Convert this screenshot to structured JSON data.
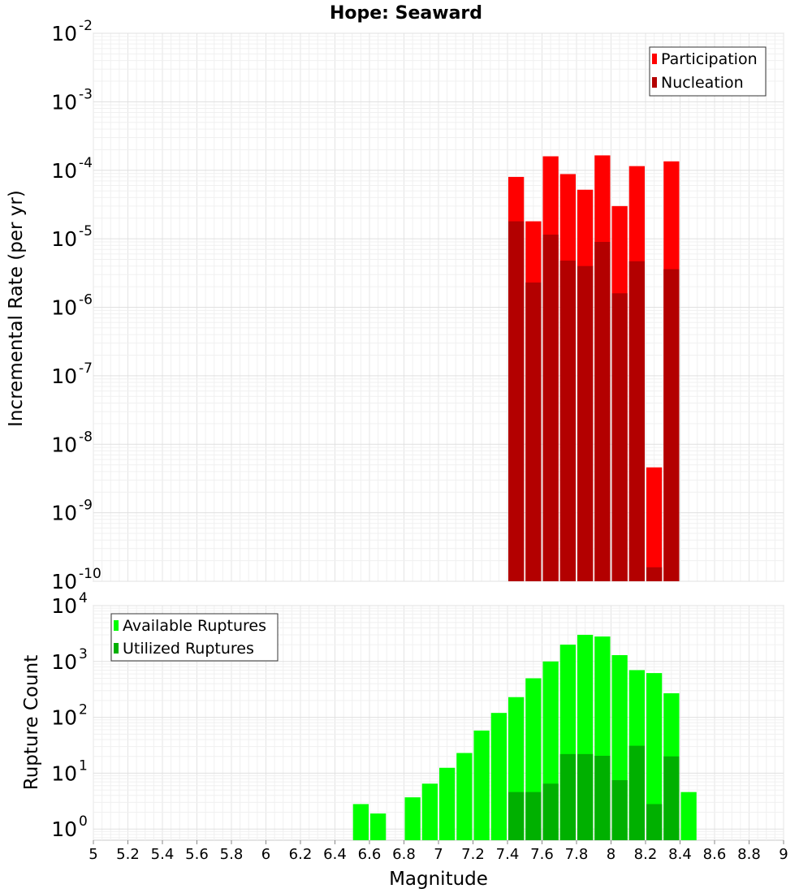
{
  "title": "Hope: Seaward",
  "chart_data": [
    {
      "type": "bar",
      "id": "rate",
      "yscale": "log",
      "ylabel": "Incremental Rate (per yr)",
      "xlim": [
        5,
        9
      ],
      "ylim_exp": [
        -10,
        -2
      ],
      "y_ticks": [
        "10",
        "10",
        "10",
        "10",
        "10",
        "10",
        "10",
        "10",
        "10"
      ],
      "y_tick_exps": [
        "-10",
        "-9",
        "-8",
        "-7",
        "-6",
        "-5",
        "-4",
        "-3",
        "-2"
      ],
      "bin_width": 0.1,
      "legend": {
        "position": "top-right",
        "entries": [
          "Participation",
          "Nucleation"
        ]
      },
      "series": [
        {
          "name": "Participation",
          "color": "#ff0000",
          "x": [
            7.45,
            7.55,
            7.65,
            7.75,
            7.85,
            7.95,
            8.05,
            8.15,
            8.25,
            8.35
          ],
          "values": [
            8e-05,
            1.8e-05,
            0.00016,
            8.8e-05,
            5.2e-05,
            0.000165,
            3e-05,
            0.000115,
            4.6e-09,
            0.000135
          ]
        },
        {
          "name": "Nucleation",
          "color": "#b30000",
          "x": [
            7.45,
            7.55,
            7.65,
            7.75,
            7.85,
            7.95,
            8.05,
            8.15,
            8.25,
            8.35
          ],
          "values": [
            1.8e-05,
            2.3e-06,
            1.15e-05,
            4.8e-06,
            4e-06,
            9e-06,
            1.6e-06,
            4.7e-06,
            1.6e-10,
            3.6e-06
          ]
        }
      ]
    },
    {
      "type": "bar",
      "id": "count",
      "yscale": "log",
      "xlabel": "Magnitude",
      "ylabel": "Rupture Count",
      "xlim": [
        5,
        9
      ],
      "ylim_exp": [
        -0.2,
        4
      ],
      "y_ticks": [
        "10",
        "10",
        "10",
        "10",
        "10"
      ],
      "y_tick_exps": [
        "0",
        "1",
        "2",
        "3",
        "4"
      ],
      "x_ticks": [
        "5",
        "5.2",
        "5.4",
        "5.6",
        "5.8",
        "6",
        "6.2",
        "6.4",
        "6.6",
        "6.8",
        "7",
        "7.2",
        "7.4",
        "7.6",
        "7.8",
        "8",
        "8.2",
        "8.4",
        "8.6",
        "8.8",
        "9"
      ],
      "bin_width": 0.1,
      "legend": {
        "position": "top-left",
        "entries": [
          "Available Ruptures",
          "Utilized Ruptures"
        ]
      },
      "series": [
        {
          "name": "Available Ruptures",
          "color": "#00ff00",
          "x": [
            6.55,
            6.65,
            6.85,
            6.95,
            7.05,
            7.15,
            7.25,
            7.35,
            7.45,
            7.55,
            7.65,
            7.75,
            7.85,
            7.95,
            8.05,
            8.15,
            8.25,
            8.35,
            8.45
          ],
          "values": [
            2.8,
            1.9,
            3.7,
            6.5,
            12.5,
            23,
            58,
            120,
            230,
            500,
            1000,
            2000,
            3000,
            2800,
            1300,
            700,
            620,
            270,
            4.6
          ]
        },
        {
          "name": "Utilized Ruptures",
          "color": "#00b000",
          "x": [
            7.45,
            7.55,
            7.65,
            7.75,
            7.85,
            7.95,
            8.05,
            8.15,
            8.25,
            8.35
          ],
          "values": [
            4.6,
            4.6,
            6.5,
            22,
            22,
            20.5,
            7.5,
            31,
            2.8,
            20
          ]
        }
      ]
    }
  ]
}
